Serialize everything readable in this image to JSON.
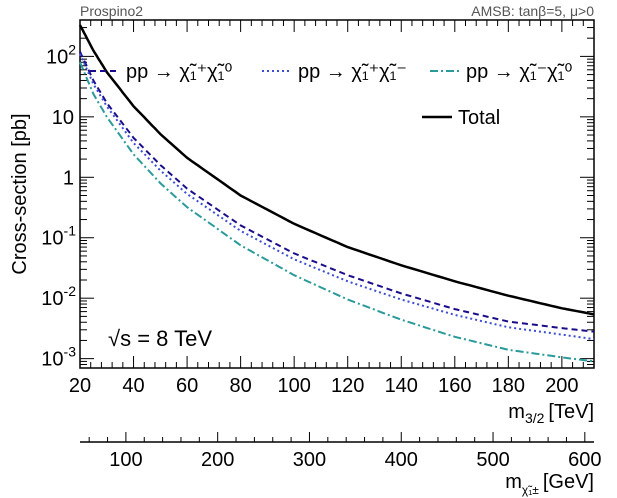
{
  "header": {
    "left_text": "Prospino2",
    "right_text": "AMSB: tanβ=5, μ>0"
  },
  "chart_data": {
    "type": "line",
    "y_scale": "log",
    "xlim": [
      20,
      212
    ],
    "ylim": [
      0.0007,
      400
    ],
    "xlabel": "m",
    "xlabel_sub": "3/2",
    "xlabel_unit": "[TeV]",
    "ylabel": "Cross-section [pb]",
    "x_ticks": [
      20,
      40,
      60,
      80,
      100,
      120,
      140,
      160,
      180,
      200
    ],
    "x_tick_labels": [
      "20",
      "40",
      "60",
      "80",
      "100",
      "120",
      "140",
      "160",
      "180",
      "200"
    ],
    "y_ticks": [
      0.001,
      0.01,
      0.1,
      1,
      10,
      100
    ],
    "y_tick_labels": [
      {
        "base": "10",
        "exp": "-3"
      },
      {
        "base": "10",
        "exp": "-2"
      },
      {
        "base": "10",
        "exp": "-1"
      },
      {
        "base": "1",
        "exp": ""
      },
      {
        "base": "10",
        "exp": ""
      },
      {
        "base": "10",
        "exp": "2"
      }
    ],
    "annotation": {
      "sqrt": "√",
      "s": "s",
      "rest": " = 8 TeV"
    },
    "series": [
      {
        "name": "Total",
        "legend_prefix": "",
        "color": "#000000",
        "dash": "",
        "x": [
          20,
          25,
          30,
          40,
          50,
          60,
          80,
          100,
          120,
          140,
          160,
          180,
          200,
          212
        ],
        "y": [
          330,
          125,
          55,
          15,
          5.2,
          2.1,
          0.5,
          0.17,
          0.07,
          0.035,
          0.019,
          0.011,
          0.0068,
          0.0054
        ]
      },
      {
        "name": "χ̃₁⁺χ̃₁⁰",
        "legend_prefix": "pp → ",
        "color": "#1a0d8c",
        "dash": "6,4",
        "x": [
          20,
          25,
          30,
          40,
          50,
          60,
          80,
          100,
          120,
          140,
          160,
          180,
          200,
          212
        ],
        "y": [
          120,
          40,
          17,
          4.5,
          1.6,
          0.65,
          0.16,
          0.055,
          0.024,
          0.012,
          0.0066,
          0.0041,
          0.0032,
          0.0028
        ]
      },
      {
        "name": "χ̃₁⁺χ̃₁⁻",
        "legend_prefix": "pp → ",
        "color": "#3a4dd4",
        "dash": "2,3",
        "x": [
          20,
          25,
          30,
          40,
          50,
          60,
          80,
          100,
          120,
          140,
          160,
          180,
          200,
          212
        ],
        "y": [
          110,
          35,
          15,
          3.7,
          1.3,
          0.53,
          0.13,
          0.044,
          0.019,
          0.0095,
          0.0053,
          0.0033,
          0.0025,
          0.0021
        ]
      },
      {
        "name": "χ̃₁⁻χ̃₁⁰",
        "legend_prefix": "pp → ",
        "color": "#2a9a9a",
        "dash": "8,3,2,3",
        "x": [
          20,
          25,
          30,
          40,
          50,
          60,
          80,
          100,
          120,
          140,
          160,
          180,
          200,
          212
        ],
        "y": [
          80,
          24,
          10,
          2.4,
          0.8,
          0.32,
          0.075,
          0.024,
          0.0095,
          0.0044,
          0.0023,
          0.0014,
          0.00105,
          0.0009
        ]
      }
    ],
    "secondary_axis": {
      "label": "m",
      "label_sub": "χ̃₁±",
      "unit": "[GeV]",
      "xlim": [
        50,
        610
      ],
      "ticks": [
        100,
        200,
        300,
        400,
        500,
        600
      ],
      "tick_labels": [
        "100",
        "200",
        "300",
        "400",
        "500",
        "600"
      ]
    }
  }
}
